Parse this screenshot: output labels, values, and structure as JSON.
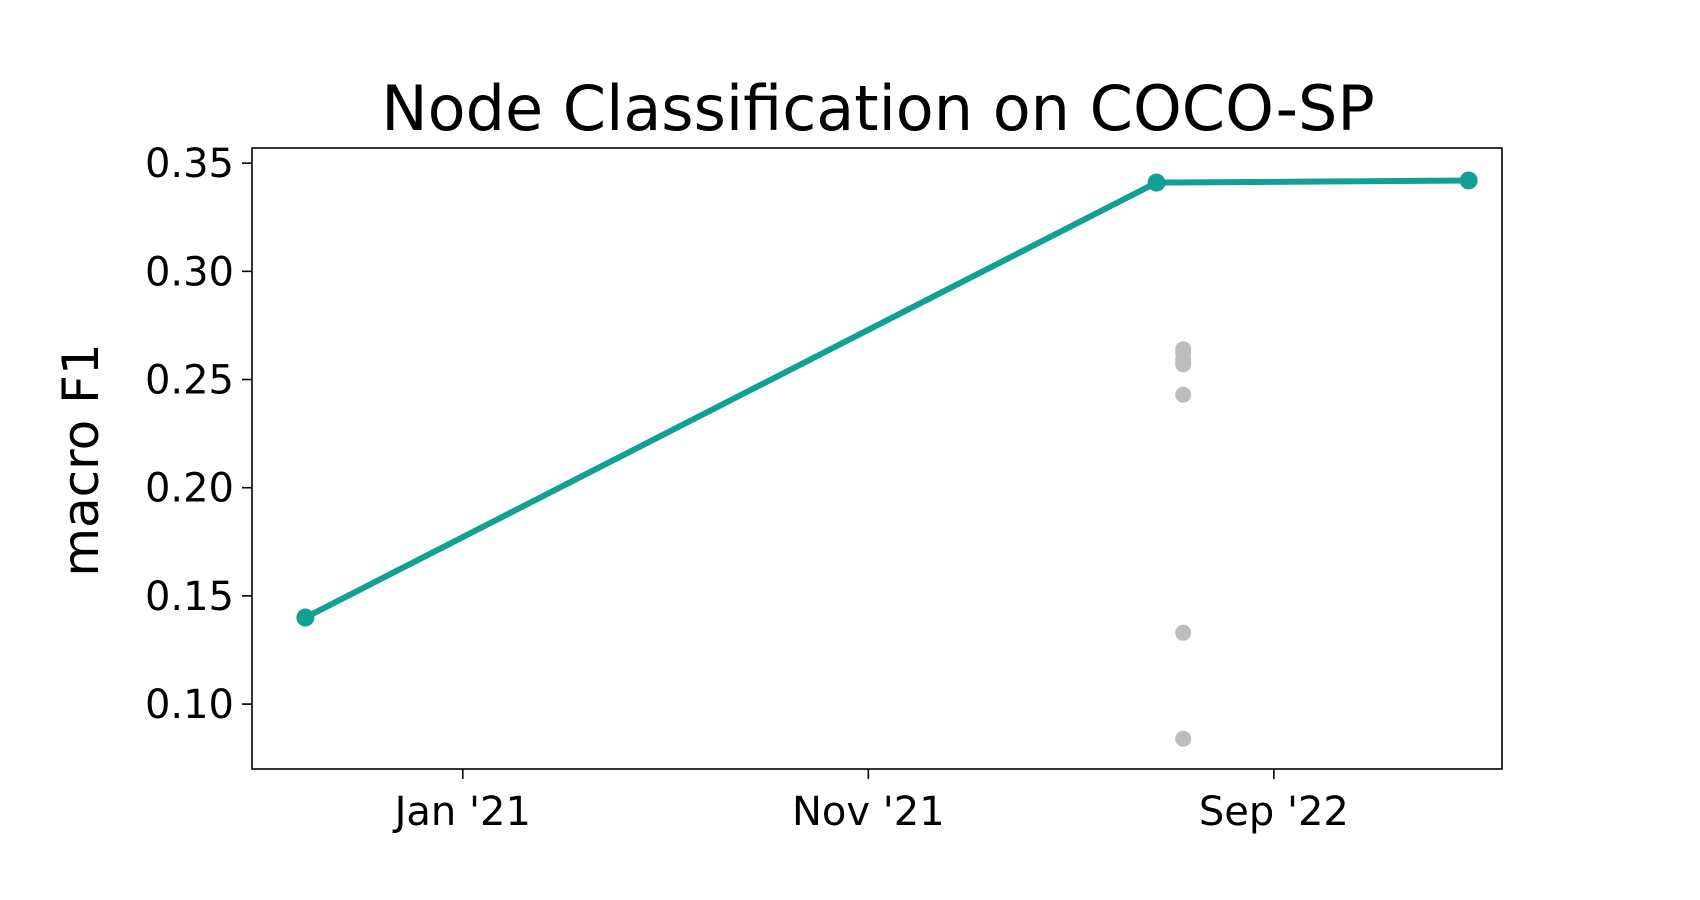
{
  "chart_data": {
    "type": "scatter",
    "title": "Node Classification on COCO-SP",
    "xlabel": "",
    "ylabel": "macro F1",
    "x_tick_labels": [
      "Jan '21",
      "Nov '21",
      "Sep '22"
    ],
    "x_ticks": [
      "2021-01-01",
      "2021-11-01",
      "2022-09-01"
    ],
    "xlim": [
      "2020-07-27",
      "2023-02-19"
    ],
    "ylim": [
      0.07,
      0.357
    ],
    "y_ticks": [
      0.1,
      0.15,
      0.2,
      0.25,
      0.3,
      0.35
    ],
    "y_tick_labels": [
      "0.10",
      "0.15",
      "0.20",
      "0.25",
      "0.30",
      "0.35"
    ],
    "grid": false,
    "series": [
      {
        "style": "line",
        "color": "#10a194",
        "points": [
          {
            "x": "2020-09-05",
            "y": 0.14
          },
          {
            "x": "2022-06-05",
            "y": 0.341
          },
          {
            "x": "2023-01-25",
            "y": 0.342
          }
        ]
      },
      {
        "style": "scatter",
        "color": "#bdbdbd",
        "points": [
          {
            "x": "2022-06-25",
            "y": 0.264
          },
          {
            "x": "2022-06-25",
            "y": 0.262
          },
          {
            "x": "2022-06-25",
            "y": 0.259
          },
          {
            "x": "2022-06-25",
            "y": 0.257
          },
          {
            "x": "2022-06-25",
            "y": 0.243
          },
          {
            "x": "2022-06-25",
            "y": 0.133
          },
          {
            "x": "2022-06-25",
            "y": 0.084
          }
        ]
      }
    ]
  }
}
